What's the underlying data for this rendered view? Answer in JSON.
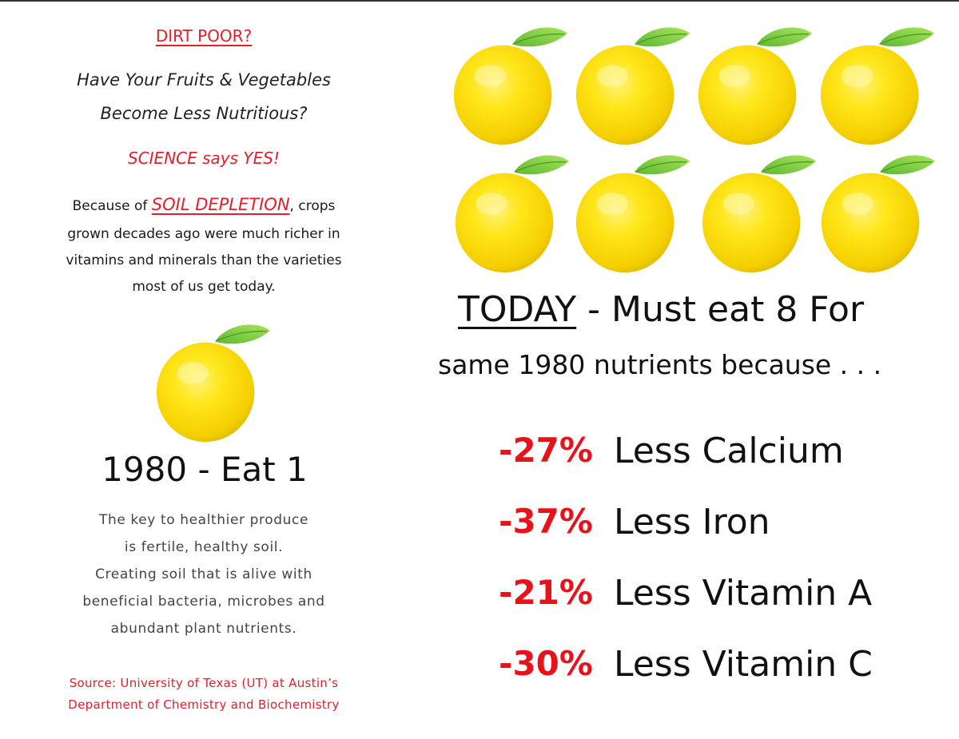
{
  "left": {
    "heading": "DIRT POOR?",
    "question_line1": "Have Your Fruits & Vegetables",
    "question_line2": "Become Less Nutritious?",
    "science": "SCIENCE says YES!",
    "body_pre": "Because of ",
    "body_highlight": "SOIL DEPLETION",
    "body_post": ", crops",
    "body_line2": "grown decades ago were much richer in",
    "body_line3": "vitamins and minerals than the varieties",
    "body_line4": "most of us get today.",
    "eat_1980": "1980 - Eat 1",
    "key_line1": "The key to healthier produce",
    "key_line2": "is fertile, healthy soil.",
    "key_line3": "Creating soil that is alive with",
    "key_line4": "beneficial bacteria, microbes and",
    "key_line5": "abundant plant nutrients.",
    "source_line1": "Source: University of Texas (UT) at Austin’s",
    "source_line2": "Department of Chemistry and Biochemistry"
  },
  "right": {
    "today_word": "TODAY",
    "today_rest": " - Must eat 8 For",
    "same_line": "same 1980 nutrients because . . .",
    "stats": [
      {
        "pct": "-27%",
        "label": "Less Calcium"
      },
      {
        "pct": "-37%",
        "label": "Less Iron"
      },
      {
        "pct": "-21%",
        "label": "Less Vitamin A"
      },
      {
        "pct": "-30%",
        "label": "Less Vitamin C"
      }
    ]
  },
  "colors": {
    "accent_red": "#e0202a",
    "stat_red": "#e8121a",
    "fruit_yellow": "#f6e000",
    "leaf_green": "#6fc63a"
  },
  "icons": {
    "fruit": "lemon-icon"
  }
}
